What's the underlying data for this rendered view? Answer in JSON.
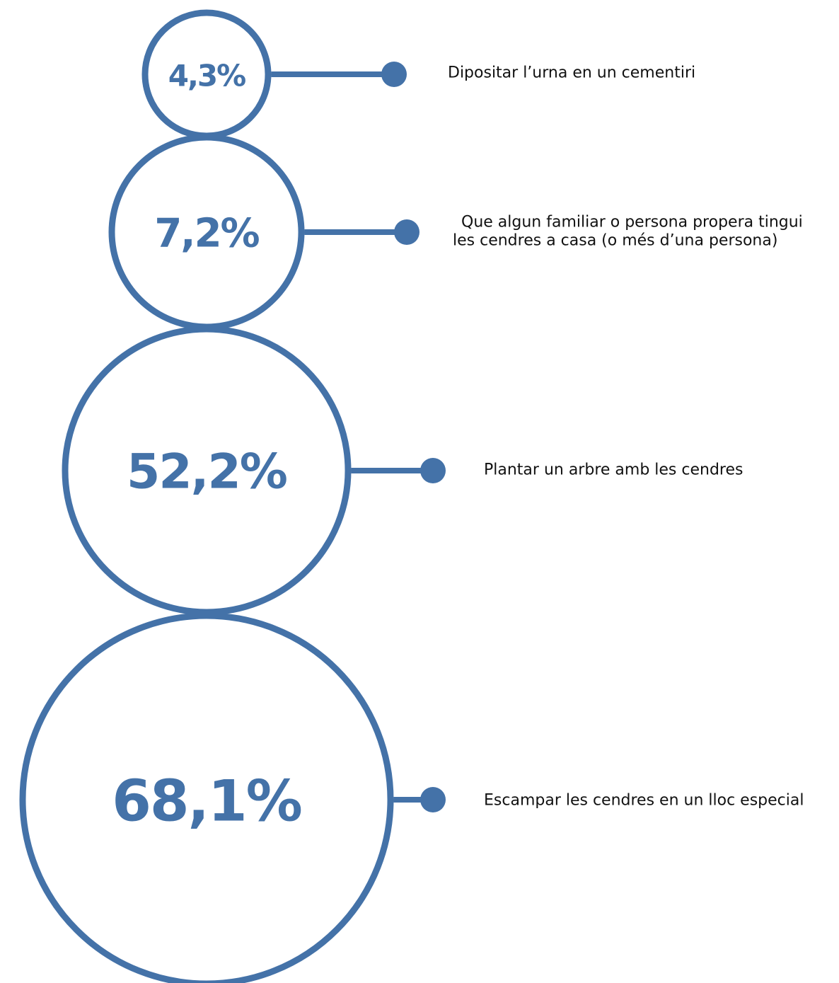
{
  "chart_data": {
    "type": "bubble",
    "title": "",
    "series": [
      {
        "values": [
          4.3,
          7.2,
          52.2,
          68.1
        ],
        "labels": [
          "4,3%",
          "7,2%",
          "52,2%",
          "68,1%"
        ]
      }
    ],
    "categories": [
      [
        "Dipositar l’urna en un cementiri"
      ],
      [
        "Que algun familiar o persona propera tingui",
        "les cendres a casa (o més d’una persona)"
      ],
      [
        "Plantar un arbre amb les cendres"
      ],
      [
        "Escampar les cendres en un lloc especial"
      ]
    ],
    "colors": {
      "accent": "#4472A8",
      "text": "#111111"
    }
  }
}
